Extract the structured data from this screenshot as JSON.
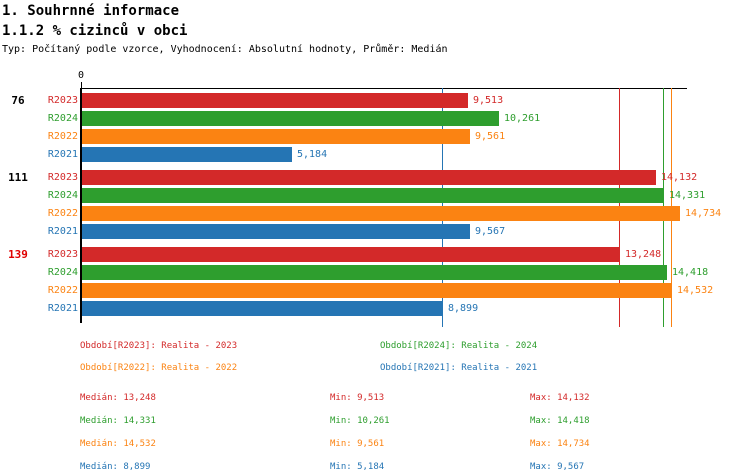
{
  "header": {
    "title1": "1. Souhrnné informace",
    "title2": "1.1.2 % cizinců v obci",
    "meta": "Typ: Počítaný podle vzorce, Vyhodnocení: Absolutní hodnoty, Průměr: Medián"
  },
  "chart_data": {
    "type": "bar",
    "orientation": "horizontal",
    "title": "1.1.2 % cizinců v obci",
    "xlabel": "",
    "ylabel": "",
    "axis": {
      "origin_label": "0",
      "xmin": 0,
      "xmax": 14900,
      "grid": false
    },
    "series": [
      {
        "key": "R2023",
        "label": "R2023",
        "color": "#d32929",
        "median": 13248,
        "min": 9513,
        "max": 14132
      },
      {
        "key": "R2024",
        "label": "R2024",
        "color": "#2e9e2e",
        "median": 14331,
        "min": 10261,
        "max": 14418
      },
      {
        "key": "R2022",
        "label": "R2022",
        "color": "#fb8312",
        "median": 14532,
        "min": 9561,
        "max": 14734
      },
      {
        "key": "R2021",
        "label": "R2021",
        "color": "#2575b4",
        "median": 8899,
        "min": 5184,
        "max": 9567
      }
    ],
    "groups": [
      {
        "label": "76",
        "label_color": "#000000",
        "values": [
          9513,
          10261,
          9561,
          5184
        ],
        "value_labels": [
          "9,513",
          "10,261",
          "9,561",
          "5,184"
        ]
      },
      {
        "label": "111",
        "label_color": "#000000",
        "values": [
          14132,
          14331,
          14734,
          9567
        ],
        "value_labels": [
          "14,132",
          "14,331",
          "14,734",
          "9,567"
        ]
      },
      {
        "label": "139",
        "label_color": "#e00000",
        "values": [
          13248,
          14418,
          14532,
          8899
        ],
        "value_labels": [
          "13,248",
          "14,418",
          "14,532",
          "8,899"
        ]
      }
    ],
    "median_lines": [
      13248,
      14331,
      14532,
      8899
    ],
    "legend_position": "bottom"
  },
  "legend": {
    "items": [
      {
        "text": "Období[R2023]: Realita - 2023",
        "color": "#d32929"
      },
      {
        "text": "Období[R2024]: Realita - 2024",
        "color": "#2e9e2e"
      },
      {
        "text": "Období[R2022]: Realita - 2022",
        "color": "#fb8312"
      },
      {
        "text": "Období[R2021]: Realita - 2021",
        "color": "#2575b4"
      }
    ]
  },
  "stats": {
    "rows": [
      {
        "median": "Medián: 13,248",
        "min": "Min: 9,513",
        "max": "Max: 14,132",
        "color": "#d32929"
      },
      {
        "median": "Medián: 14,331",
        "min": "Min: 10,261",
        "max": "Max: 14,418",
        "color": "#2e9e2e"
      },
      {
        "median": "Medián: 14,532",
        "min": "Min: 9,561",
        "max": "Max: 14,734",
        "color": "#fb8312"
      },
      {
        "median": "Medián: 8,899",
        "min": "Min: 5,184",
        "max": "Max: 9,567",
        "color": "#2575b4"
      }
    ]
  }
}
